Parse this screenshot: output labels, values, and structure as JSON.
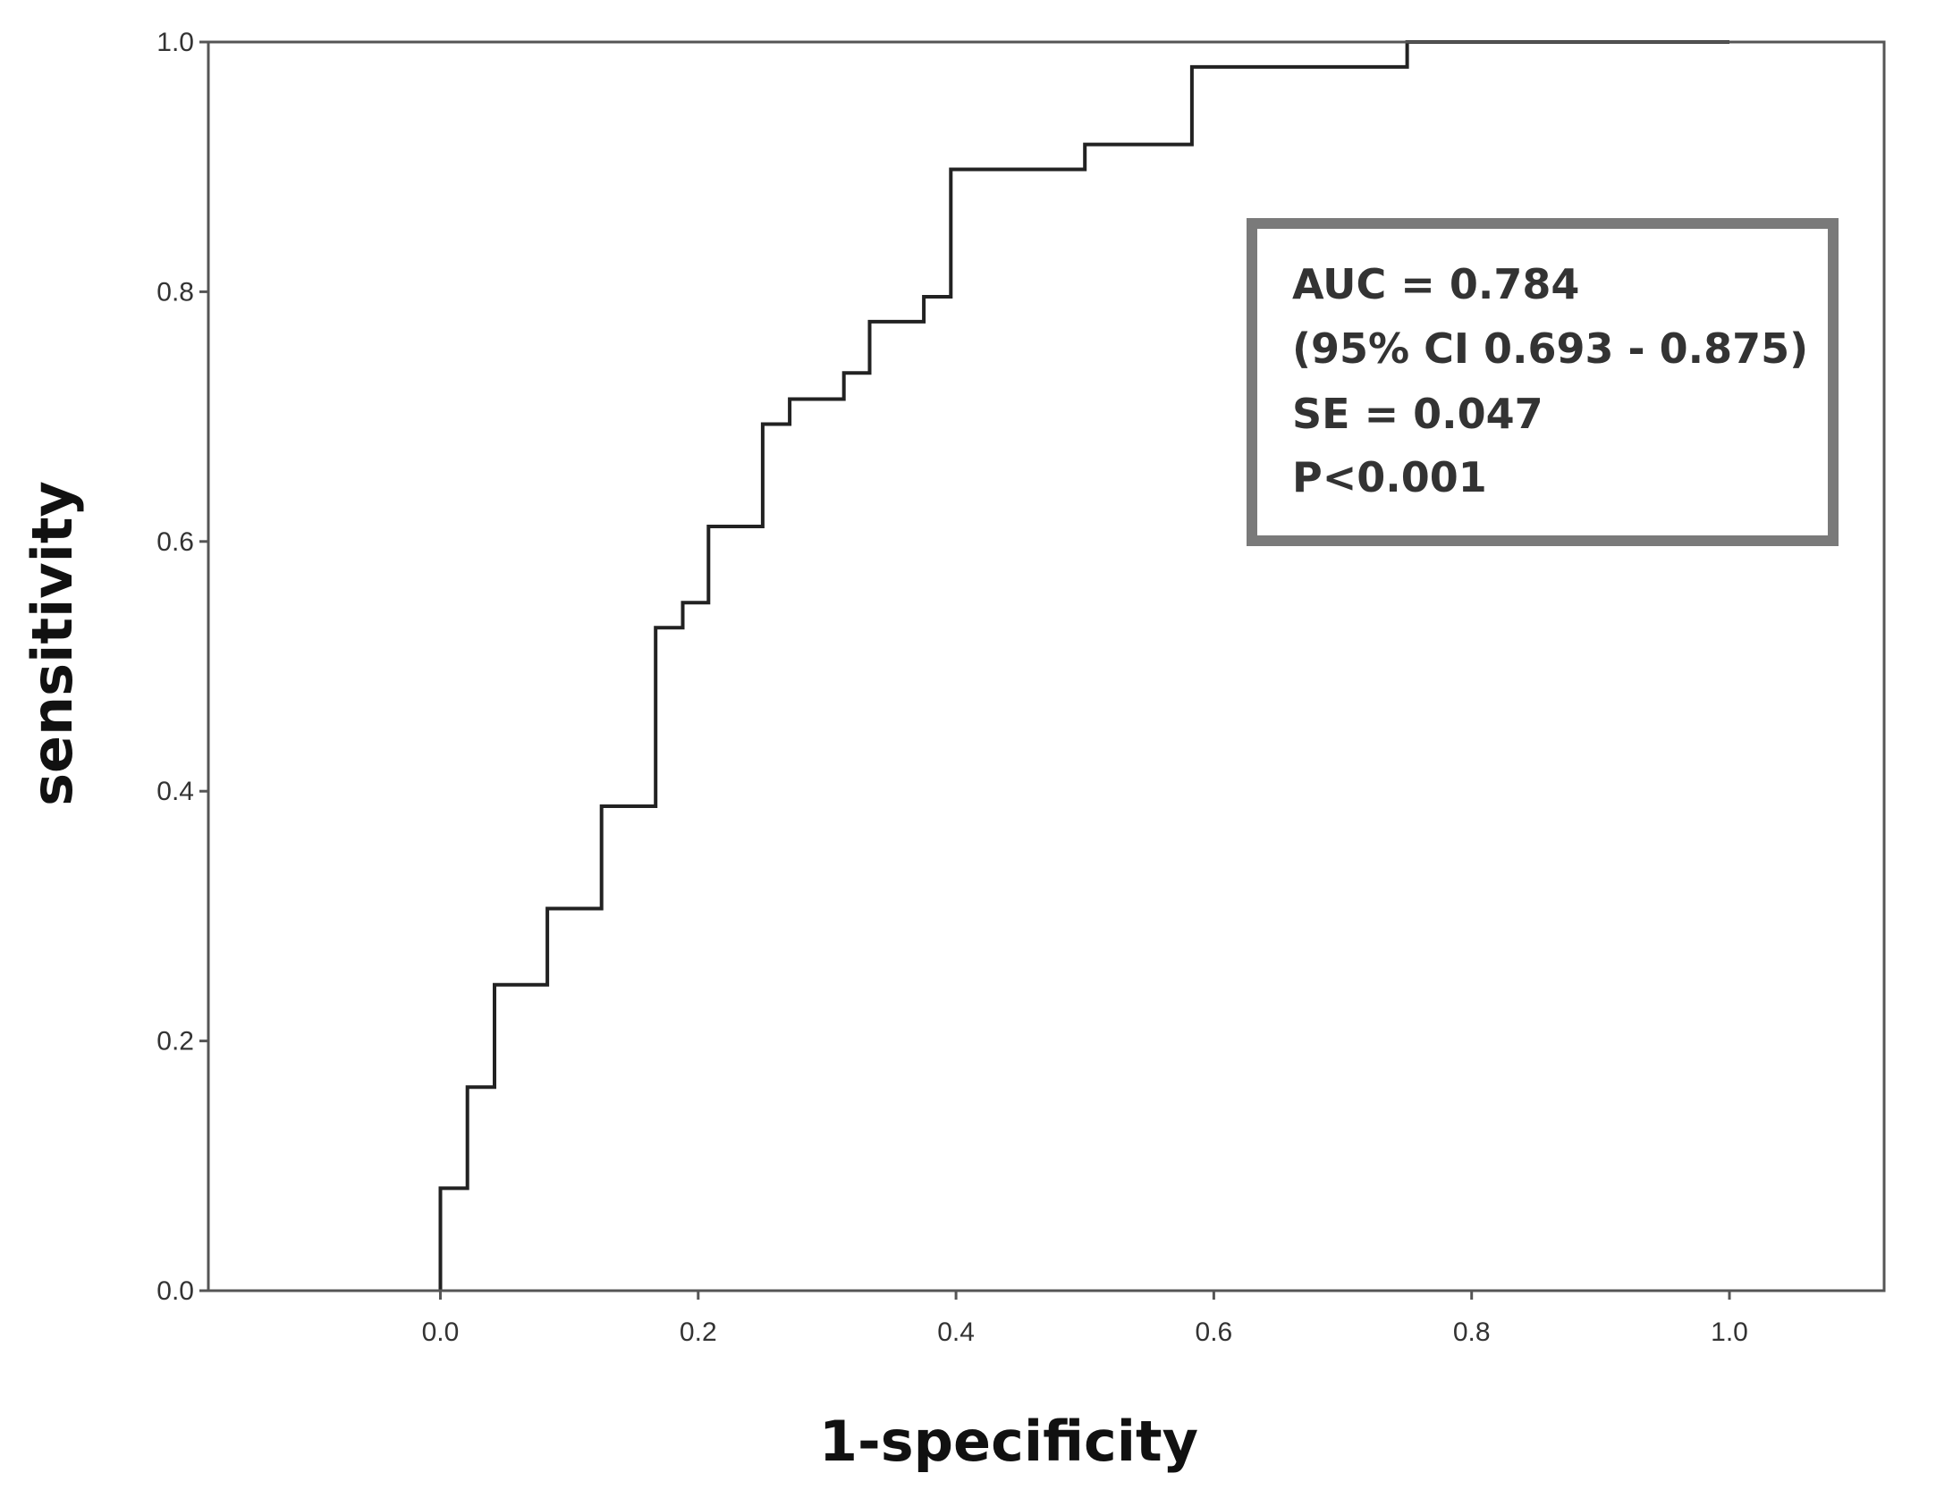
{
  "chart_data": {
    "type": "line",
    "title": "",
    "xlabel": "1-specificity",
    "ylabel": "sensitivity",
    "xlim": [
      -0.18,
      1.12
    ],
    "ylim": [
      0.0,
      1.0
    ],
    "grid": false,
    "legend": "none",
    "x_ticks": [
      "0.0",
      "0.2",
      "0.4",
      "0.6",
      "0.8",
      "1.0"
    ],
    "y_ticks": [
      "0.0",
      "0.2",
      "0.4",
      "0.6",
      "0.8",
      "1.0"
    ],
    "series": [
      {
        "style": "step",
        "color": "#222222",
        "x": [
          0.0,
          0.0,
          0.021,
          0.021,
          0.042,
          0.042,
          0.083,
          0.083,
          0.125,
          0.125,
          0.167,
          0.167,
          0.188,
          0.188,
          0.208,
          0.208,
          0.25,
          0.25,
          0.271,
          0.271,
          0.313,
          0.313,
          0.333,
          0.333,
          0.375,
          0.375,
          0.396,
          0.396,
          0.5,
          0.5,
          0.583,
          0.583,
          0.75,
          0.75,
          1.0
        ],
        "y": [
          0.0,
          0.082,
          0.082,
          0.163,
          0.163,
          0.245,
          0.245,
          0.306,
          0.306,
          0.388,
          0.388,
          0.531,
          0.531,
          0.551,
          0.551,
          0.612,
          0.612,
          0.694,
          0.694,
          0.714,
          0.714,
          0.735,
          0.735,
          0.776,
          0.776,
          0.796,
          0.796,
          0.898,
          0.898,
          0.918,
          0.918,
          0.98,
          0.98,
          1.0,
          1.0
        ]
      }
    ],
    "annotation": {
      "lines": [
        "AUC = 0.784",
        "(95% CI 0.693 - 0.875)",
        "SE = 0.047",
        "P<0.001"
      ],
      "border_color": "#7a7a7a"
    }
  }
}
